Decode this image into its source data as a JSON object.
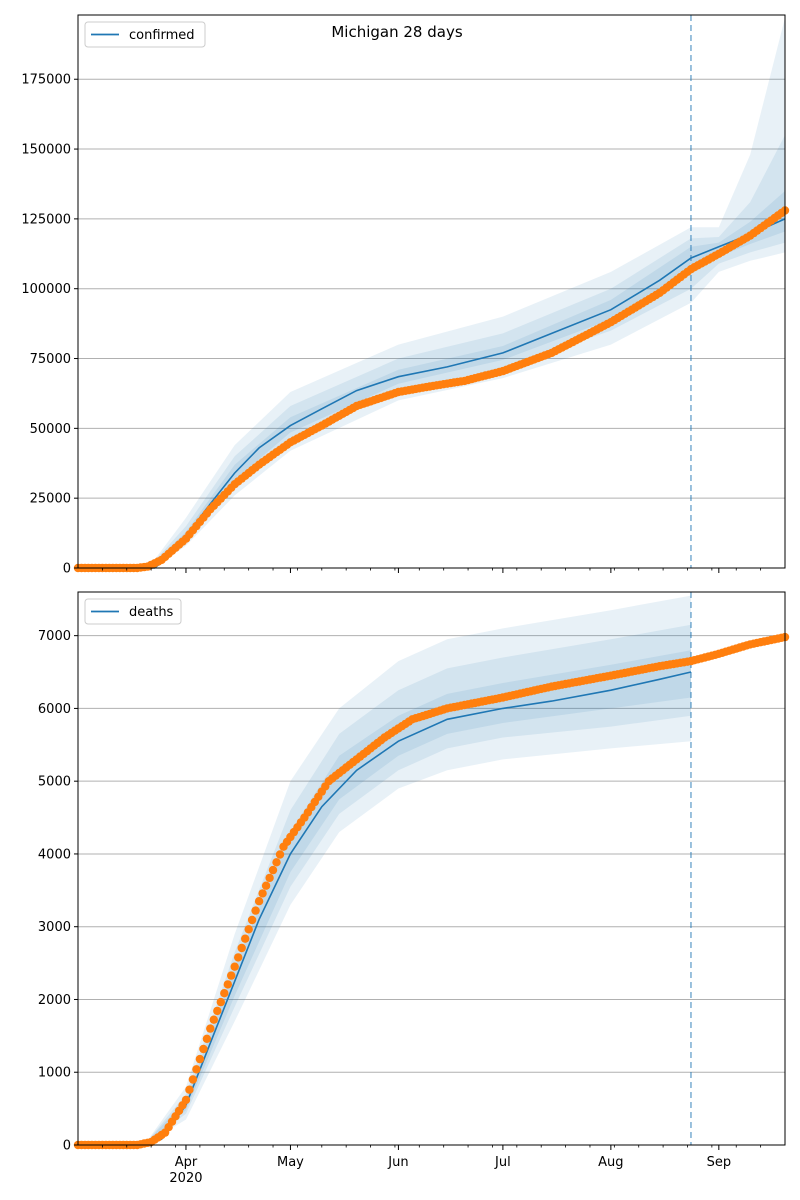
{
  "figure_title": "Michigan 28 days",
  "colors": {
    "model": "#1f77b4",
    "observed": "#ff7f0e",
    "band": "#1f77b4",
    "grid": "#b0b0b0",
    "forecast_line": "#1f77b4"
  },
  "chart_data": [
    {
      "type": "line",
      "legend": "confirmed",
      "legend_position": "top-left",
      "grid": "y",
      "x_axis": {
        "start": "2020-03-01",
        "end": "2020-09-20",
        "ticks": [
          "2020-04-01",
          "2020-05-01",
          "2020-06-01",
          "2020-07-01",
          "2020-08-01",
          "2020-09-01"
        ],
        "tick_labels": [
          "Apr",
          "May",
          "Jun",
          "Jul",
          "Aug",
          "Sep"
        ],
        "year_label": "2020",
        "show_labels": false
      },
      "ylim": [
        0,
        198000
      ],
      "yticks": [
        0,
        25000,
        50000,
        75000,
        100000,
        125000,
        150000,
        175000
      ],
      "forecast_start": "2020-08-24",
      "model": {
        "name": "confirmed",
        "dates": [
          "2020-03-01",
          "2020-03-23",
          "2020-03-25",
          "2020-04-01",
          "2020-04-08",
          "2020-04-15",
          "2020-04-22",
          "2020-05-01",
          "2020-05-10",
          "2020-05-20",
          "2020-06-01",
          "2020-06-15",
          "2020-07-01",
          "2020-07-15",
          "2020-08-01",
          "2020-08-15",
          "2020-08-24",
          "2020-09-01",
          "2020-09-10",
          "2020-09-20"
        ],
        "values": [
          0,
          0,
          2000,
          11500,
          23000,
          34000,
          43000,
          51000,
          57000,
          63500,
          68500,
          72000,
          77000,
          84000,
          92500,
          103000,
          111000,
          115000,
          119500,
          125000
        ]
      },
      "bands": [
        {
          "dates": [
            "2020-03-23",
            "2020-04-01",
            "2020-04-15",
            "2020-05-01",
            "2020-06-01",
            "2020-07-01",
            "2020-08-01",
            "2020-08-24",
            "2020-09-01",
            "2020-09-10",
            "2020-09-20"
          ],
          "lower": [
            0,
            8000,
            26000,
            42000,
            60000,
            68000,
            80000,
            95000,
            106000,
            110000,
            113000
          ],
          "upper": [
            3000,
            18000,
            44000,
            63000,
            80000,
            90000,
            106000,
            122000,
            122000,
            148000,
            197000
          ]
        },
        {
          "dates": [
            "2020-03-23",
            "2020-04-01",
            "2020-04-15",
            "2020-05-01",
            "2020-06-01",
            "2020-07-01",
            "2020-08-01",
            "2020-08-24",
            "2020-09-01",
            "2020-09-10",
            "2020-09-20"
          ],
          "lower": [
            0,
            9500,
            29000,
            45500,
            63500,
            71500,
            85000,
            100000,
            109000,
            113000,
            116500
          ],
          "upper": [
            2600,
            15000,
            40000,
            58000,
            75000,
            84000,
            100000,
            118000,
            118500,
            131000,
            155000
          ]
        },
        {
          "dates": [
            "2020-03-23",
            "2020-04-01",
            "2020-04-15",
            "2020-05-01",
            "2020-06-01",
            "2020-07-01",
            "2020-08-01",
            "2020-08-24",
            "2020-09-01",
            "2020-09-10",
            "2020-09-20"
          ],
          "lower": [
            0,
            10500,
            31500,
            48500,
            66000,
            74500,
            89000,
            106000,
            111500,
            116000,
            120500
          ],
          "upper": [
            2300,
            13000,
            37000,
            54000,
            71000,
            79500,
            96000,
            115000,
            116500,
            124000,
            135000
          ]
        }
      ],
      "observed": {
        "name": "confirmed observed",
        "dates": [
          "2020-03-01",
          "2020-03-18",
          "2020-03-21",
          "2020-03-25",
          "2020-04-01",
          "2020-04-08",
          "2020-04-15",
          "2020-04-22",
          "2020-05-01",
          "2020-05-10",
          "2020-05-20",
          "2020-06-01",
          "2020-06-10",
          "2020-06-20",
          "2020-07-01",
          "2020-07-15",
          "2020-08-01",
          "2020-08-15",
          "2020-08-24",
          "2020-09-01",
          "2020-09-10",
          "2020-09-20"
        ],
        "values": [
          0,
          0,
          500,
          2900,
          10500,
          21000,
          30000,
          37000,
          45000,
          51000,
          58000,
          63000,
          65000,
          67000,
          70500,
          77000,
          88000,
          98500,
          107000,
          112500,
          119000,
          128000
        ]
      }
    },
    {
      "type": "line",
      "legend": "deaths",
      "legend_position": "top-left",
      "grid": "y",
      "x_axis": {
        "start": "2020-03-01",
        "end": "2020-09-20",
        "ticks": [
          "2020-04-01",
          "2020-05-01",
          "2020-06-01",
          "2020-07-01",
          "2020-08-01",
          "2020-09-01"
        ],
        "tick_labels": [
          "Apr",
          "May",
          "Jun",
          "Jul",
          "Aug",
          "Sep"
        ],
        "year_label": "2020",
        "show_labels": true
      },
      "ylim": [
        0,
        7600
      ],
      "yticks": [
        0,
        1000,
        2000,
        3000,
        4000,
        5000,
        6000,
        7000
      ],
      "forecast_start": "2020-08-24",
      "model": {
        "name": "deaths",
        "dates": [
          "2020-03-01",
          "2020-03-20",
          "2020-03-25",
          "2020-04-01",
          "2020-04-08",
          "2020-04-15",
          "2020-04-22",
          "2020-05-01",
          "2020-05-10",
          "2020-05-20",
          "2020-06-01",
          "2020-06-15",
          "2020-07-01",
          "2020-07-15",
          "2020-08-01",
          "2020-08-15",
          "2020-08-24"
        ],
        "values": [
          0,
          0,
          80,
          550,
          1400,
          2250,
          3100,
          4000,
          4650,
          5150,
          5550,
          5850,
          6000,
          6100,
          6250,
          6400,
          6500
        ]
      },
      "bands": [
        {
          "dates": [
            "2020-03-20",
            "2020-04-01",
            "2020-04-15",
            "2020-05-01",
            "2020-05-15",
            "2020-06-01",
            "2020-06-15",
            "2020-07-01",
            "2020-08-01",
            "2020-08-24"
          ],
          "lower": [
            0,
            350,
            1700,
            3300,
            4300,
            4900,
            5150,
            5300,
            5450,
            5550
          ],
          "upper": [
            0,
            800,
            2900,
            5000,
            6000,
            6650,
            6950,
            7100,
            7350,
            7550
          ]
        },
        {
          "dates": [
            "2020-03-20",
            "2020-04-01",
            "2020-04-15",
            "2020-05-01",
            "2020-05-15",
            "2020-06-01",
            "2020-06-15",
            "2020-07-01",
            "2020-08-01",
            "2020-08-24"
          ],
          "lower": [
            0,
            430,
            1900,
            3550,
            4550,
            5150,
            5450,
            5600,
            5750,
            5900
          ],
          "upper": [
            0,
            700,
            2650,
            4600,
            5650,
            6250,
            6550,
            6700,
            6950,
            7150
          ]
        },
        {
          "dates": [
            "2020-03-20",
            "2020-04-01",
            "2020-04-15",
            "2020-05-01",
            "2020-05-15",
            "2020-06-01",
            "2020-06-15",
            "2020-07-01",
            "2020-08-01",
            "2020-08-24"
          ],
          "lower": [
            0,
            480,
            2050,
            3750,
            4750,
            5350,
            5650,
            5800,
            6000,
            6150
          ],
          "upper": [
            0,
            630,
            2450,
            4300,
            5350,
            5900,
            6200,
            6350,
            6600,
            6800
          ]
        }
      ],
      "observed": {
        "name": "deaths observed",
        "dates": [
          "2020-03-01",
          "2020-03-18",
          "2020-03-22",
          "2020-03-26",
          "2020-04-01",
          "2020-04-08",
          "2020-04-15",
          "2020-04-22",
          "2020-04-29",
          "2020-05-05",
          "2020-05-12",
          "2020-05-20",
          "2020-05-28",
          "2020-06-05",
          "2020-06-15",
          "2020-07-01",
          "2020-07-15",
          "2020-08-01",
          "2020-08-15",
          "2020-08-24",
          "2020-09-01",
          "2020-09-10",
          "2020-09-20"
        ],
        "values": [
          0,
          0,
          40,
          170,
          620,
          1600,
          2450,
          3350,
          4100,
          4500,
          5000,
          5300,
          5600,
          5850,
          6000,
          6150,
          6300,
          6450,
          6580,
          6650,
          6750,
          6880,
          6980
        ]
      }
    }
  ]
}
